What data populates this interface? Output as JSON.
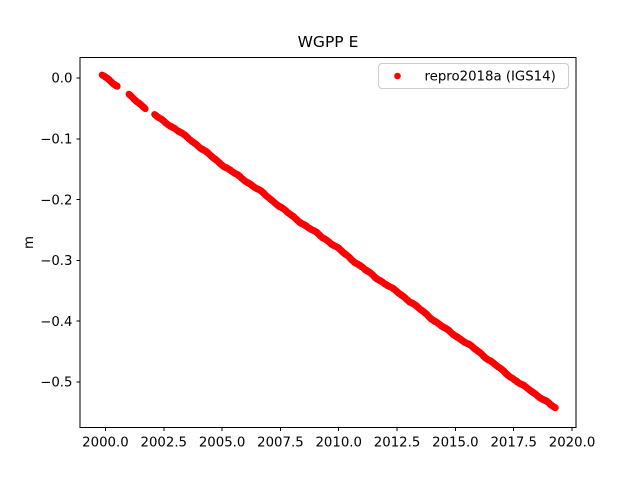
{
  "figure": {
    "title": "WGPP E",
    "ylabel": "m",
    "legend": {
      "label": "repro2018a (IGS14)",
      "marker": "red-dot-icon",
      "marker_color": "#ff0000",
      "border_color": "#cccccc",
      "background_color": "#ffffff"
    }
  },
  "colors": {
    "background": "#ffffff",
    "axes": "#000000",
    "text": "#000000",
    "series": "#ff0000"
  },
  "chart_data": {
    "type": "scatter",
    "title": "WGPP E",
    "xlabel": "",
    "ylabel": "m",
    "grid": false,
    "legend_position": "upper right",
    "xlim": [
      1998.91,
      2020.17
    ],
    "ylim": [
      -0.575,
      0.0337
    ],
    "x_ticks": {
      "values": [
        2000.0,
        2002.5,
        2005.0,
        2007.5,
        2010.0,
        2012.5,
        2015.0,
        2017.5,
        2020.0
      ],
      "labels": [
        "2000.0",
        "2002.5",
        "2005.0",
        "2007.5",
        "2010.0",
        "2012.5",
        "2015.0",
        "2017.5",
        "2020.0"
      ]
    },
    "y_ticks": {
      "values": [
        0.0,
        -0.1,
        -0.2,
        -0.3,
        -0.4,
        -0.5
      ],
      "labels": [
        "0.0",
        "−0.1",
        "−0.2",
        "−0.3",
        "−0.4",
        "−0.5"
      ]
    },
    "series": [
      {
        "name": "repro2018a (IGS14)",
        "color": "#ff0000",
        "marker": "dot",
        "marker_radius_px": 3.2,
        "trend": {
          "slope_m_per_yr": -0.02823,
          "reference_year": 2000.0,
          "reference_value": 0.0
        },
        "segments": [
          [
            1999.85,
            2000.52
          ],
          [
            2001.0,
            2001.72
          ],
          [
            2002.1,
            2019.3
          ]
        ],
        "yearly_values": {
          "years": [
            2000,
            2001,
            2002,
            2003,
            2004,
            2005,
            2006,
            2007,
            2008,
            2009,
            2010,
            2011,
            2012,
            2013,
            2014,
            2015,
            2016,
            2017,
            2018,
            2019
          ],
          "values": [
            0.0,
            -0.028,
            -0.056,
            -0.085,
            -0.113,
            -0.141,
            -0.169,
            -0.198,
            -0.226,
            -0.254,
            -0.282,
            -0.311,
            -0.339,
            -0.367,
            -0.395,
            -0.423,
            -0.452,
            -0.48,
            -0.508,
            -0.536
          ]
        },
        "first_point": {
          "year": 1999.85,
          "value": 0.004
        },
        "last_point": {
          "year": 2019.3,
          "value": -0.545
        }
      }
    ],
    "sample_step_years": 0.009615,
    "noise": {
      "seed": 42,
      "jitter": 0.0007,
      "components": [
        {
          "amp": 0.0012,
          "period": 3.1,
          "phase": 0.8
        },
        {
          "amp": 0.0008,
          "period": 1.13,
          "phase": 2.1
        },
        {
          "amp": 0.0005,
          "period": 0.47,
          "phase": 0.3
        }
      ]
    }
  }
}
